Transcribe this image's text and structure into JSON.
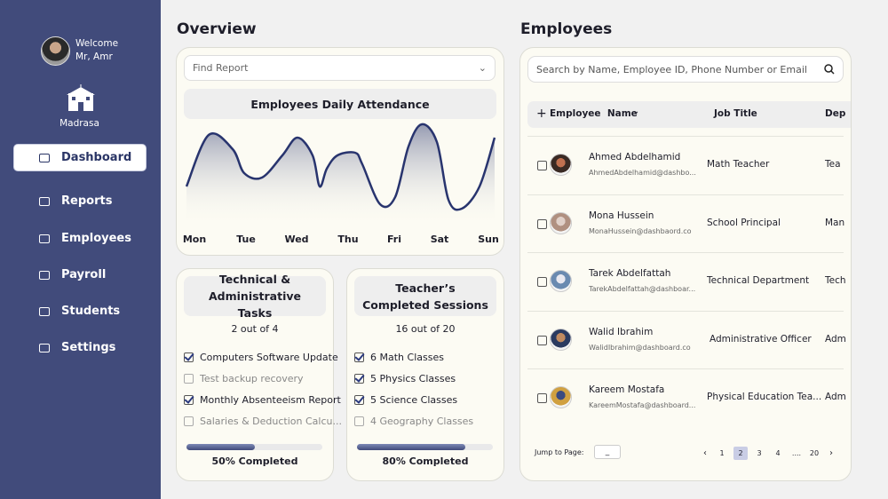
{
  "sidebar": {
    "welcome": "Welcome",
    "user": "Mr, Amr",
    "school": "Madrasa",
    "nav": [
      "Dashboard",
      "Reports",
      "Employees",
      "Payroll",
      "Students",
      "Settings"
    ]
  },
  "overview": {
    "title": "Overview",
    "search_placeholder": "Find Report",
    "attendance": {
      "title": "Employees Daily Attendance",
      "days": [
        "Mon",
        "Tue",
        "Wed",
        "Thu",
        "Fri",
        "Sat",
        "Sun"
      ]
    },
    "tasks": {
      "title": "Technical & Administrative Tasks",
      "count": "2 out of 4",
      "items": [
        {
          "label": "Computers Software Update",
          "checked": true
        },
        {
          "label": "Test backup recovery",
          "checked": false
        },
        {
          "label": "Monthly Absenteeism Report",
          "checked": true
        },
        {
          "label": "Salaries & Deduction Calcu...",
          "checked": false
        }
      ],
      "progress": 50,
      "progress_label": "50% Completed"
    },
    "sessions": {
      "title": "Teacher’s Completed Sessions",
      "count": "16 out of 20",
      "items": [
        {
          "label": "6 Math Classes",
          "checked": true
        },
        {
          "label": "5 Physics Classes",
          "checked": true
        },
        {
          "label": "5 Science Classes",
          "checked": true
        },
        {
          "label": "4 Geography Classes",
          "checked": false
        }
      ],
      "progress": 80,
      "progress_label": "80% Completed"
    }
  },
  "employees": {
    "title": "Employees",
    "search_placeholder": "Search by Name, Employee ID, Phone Number or Email",
    "columns": [
      "Employee  Name",
      "Job Title",
      "Dep"
    ],
    "rows": [
      {
        "name": "Ahmed Abdelhamid",
        "email": "AhmedAbdelhamid@dashbo...",
        "job": "Math Teacher",
        "dept": "Tea"
      },
      {
        "name": "Mona Hussein",
        "email": "MonaHussein@dashbaord.co",
        "job": "School Principal",
        "dept": "Man"
      },
      {
        "name": "Tarek Abdelfattah",
        "email": "TarekAbdelfattah@dashboar...",
        "job": "Technical Department",
        "dept": "Tech"
      },
      {
        "name": "Walid Ibrahim",
        "email": "WalidIbrahim@dashboard.co",
        "job": "Administrative Officer",
        "dept": "Adm"
      },
      {
        "name": "Kareem Mostafa",
        "email": "KareemMostafa@dashboard...",
        "job": "Physical Education Tea...",
        "dept": "Adm"
      }
    ],
    "pagination": {
      "jump_label": "Jump to Page:",
      "jump_value": "_",
      "pages": [
        1,
        2,
        3,
        4,
        "....",
        20
      ],
      "current": 2
    }
  }
}
